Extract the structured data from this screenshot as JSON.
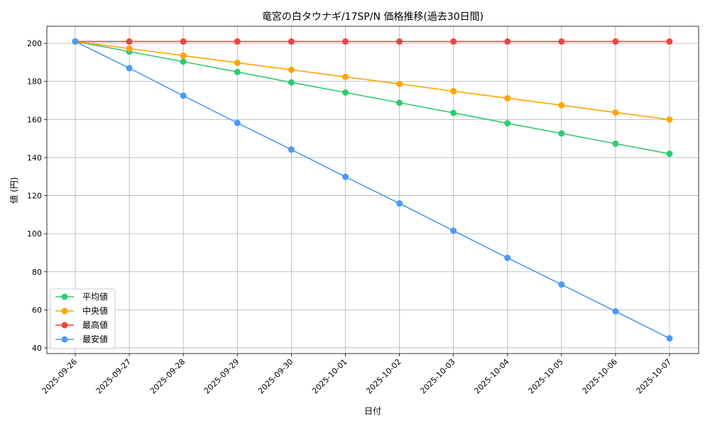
{
  "chart_data": {
    "type": "line",
    "title": "竜宮の白タウナギ/17SP/N 価格推移(過去30日間)",
    "xlabel": "日付",
    "ylabel": "値 (円)",
    "categories": [
      "2025-09-26",
      "2025-09-27",
      "2025-09-28",
      "2025-09-29",
      "2025-09-30",
      "2025-10-01",
      "2025-10-02",
      "2025-10-03",
      "2025-10-04",
      "2025-10-05",
      "2025-10-06",
      "2025-10-07"
    ],
    "ylim": [
      37,
      209
    ],
    "yticks": [
      40,
      60,
      80,
      100,
      120,
      140,
      160,
      180,
      200
    ],
    "grid": true,
    "legend_position": "lower-left",
    "series": [
      {
        "name": "平均値",
        "color": "#2ecc71",
        "values": [
          201,
          195.7,
          190.4,
          185,
          179.5,
          174.2,
          168.8,
          163.5,
          158,
          152.7,
          147.3,
          142
        ]
      },
      {
        "name": "中央値",
        "color": "#ffa500",
        "values": [
          201,
          197.3,
          193.6,
          189.8,
          186.1,
          182.4,
          178.7,
          174.9,
          171.2,
          167.5,
          163.7,
          160
        ]
      },
      {
        "name": "最高値",
        "color": "#ef4444",
        "values": [
          201,
          201,
          201,
          201,
          201,
          201,
          201,
          201,
          201,
          201,
          201,
          201
        ]
      },
      {
        "name": "最安値",
        "color": "#4a9af5",
        "values": [
          201,
          187,
          172.5,
          158.2,
          144.2,
          129.9,
          115.9,
          101.6,
          87.3,
          73.3,
          59.2,
          45
        ]
      }
    ]
  }
}
